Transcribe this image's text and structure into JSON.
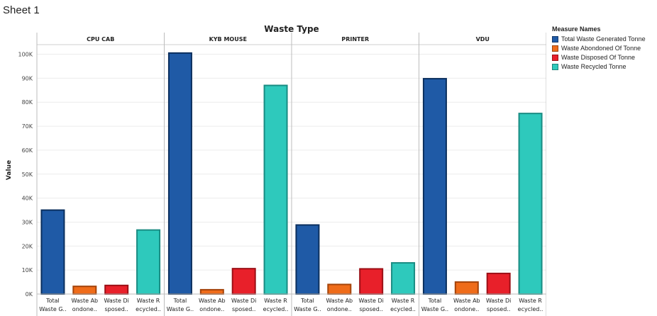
{
  "sheet_title": "Sheet 1",
  "chart_data": {
    "type": "bar",
    "title": "Waste Type",
    "ylabel": "Value",
    "ylim": [
      0,
      104000
    ],
    "yticks": [
      0,
      10000,
      20000,
      30000,
      40000,
      50000,
      60000,
      70000,
      80000,
      90000,
      100000
    ],
    "ytick_labels": [
      "0K",
      "10K",
      "20K",
      "30K",
      "40K",
      "50K",
      "60K",
      "70K",
      "80K",
      "90K",
      "100K"
    ],
    "grid": true,
    "legend_placement": "right",
    "legend_title": "Measure Names",
    "panels": [
      "CPU CAB",
      "KYB MOUSE",
      "PRINTER",
      "VDU"
    ],
    "category_labels": [
      [
        "Total",
        "Waste G.."
      ],
      [
        "Waste Ab",
        "ondone.."
      ],
      [
        "Waste Di",
        "sposed.."
      ],
      [
        "Waste R",
        "ecycled.."
      ]
    ],
    "series": [
      {
        "name": "Total Waste Generated Tonne",
        "color": "#1f5aa6",
        "border": "#0b2f5e",
        "values": [
          35000,
          100500,
          28800,
          89800
        ]
      },
      {
        "name": "Waste Abondoned Of Tonne",
        "color": "#ef6c1a",
        "border": "#a4430a",
        "values": [
          3200,
          1800,
          4000,
          5000
        ]
      },
      {
        "name": "Waste Disposed Of Tonne",
        "color": "#e8202a",
        "border": "#9c0f16",
        "values": [
          3600,
          10600,
          10500,
          8600
        ]
      },
      {
        "name": "Waste Recycled Tonne",
        "color": "#2ec9bc",
        "border": "#1a8c83",
        "values": [
          26700,
          87000,
          13000,
          75300
        ]
      }
    ]
  }
}
